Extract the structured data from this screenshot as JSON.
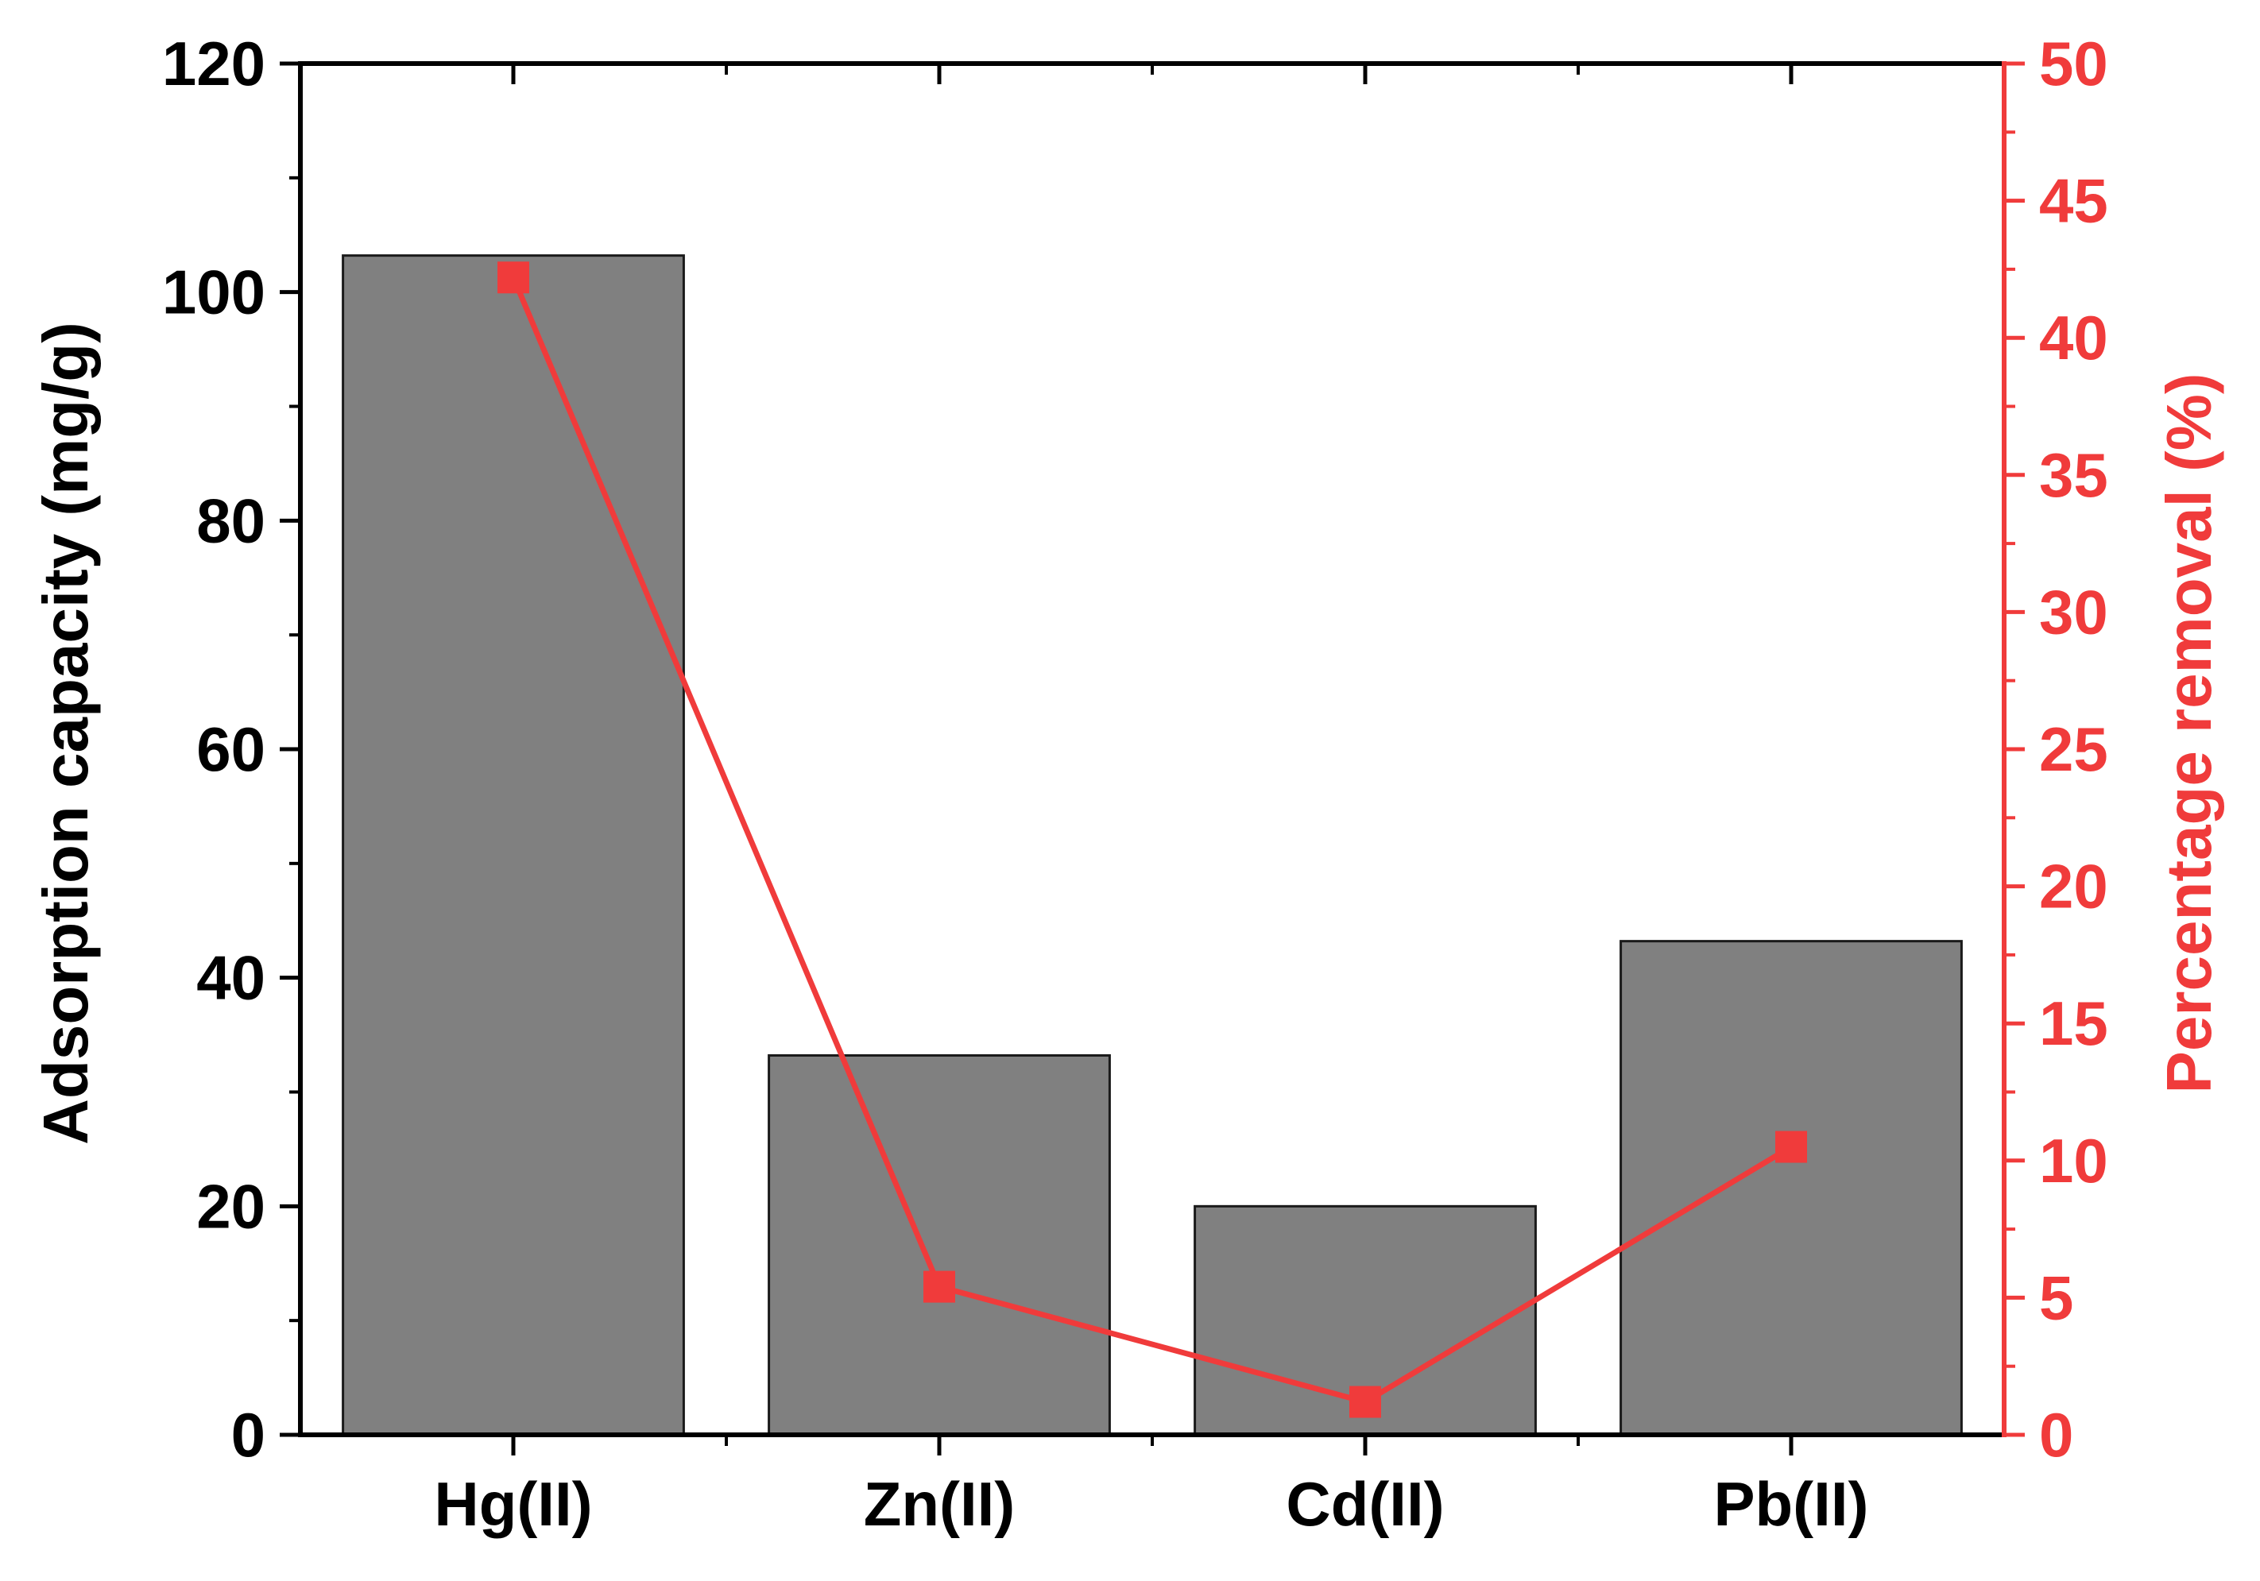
{
  "chart_data": {
    "type": "bar",
    "categories": [
      "Hg(II)",
      "Zn(II)",
      "Cd(II)",
      "Pb(II)"
    ],
    "series": [
      {
        "type": "bar",
        "axis": "left",
        "values": [
          103.2,
          33.2,
          20.0,
          43.2
        ],
        "color": "#808080"
      },
      {
        "type": "line",
        "axis": "right",
        "marker": "square",
        "values": [
          42.2,
          5.4,
          1.2,
          10.5
        ],
        "color": "#f03b3b"
      }
    ],
    "ylabel": "Adsorption capacity (mg/g)",
    "y2label": "Percentage removal (%)",
    "ylim": [
      0,
      120
    ],
    "y2lim": [
      0,
      50
    ],
    "yticks": [
      "0",
      "20",
      "40",
      "60",
      "80",
      "100",
      "120"
    ],
    "y2ticks": [
      "0",
      "5",
      "10",
      "15",
      "20",
      "25",
      "30",
      "35",
      "40",
      "45",
      "50"
    ],
    "grid": false,
    "legend": "none",
    "colors": {
      "left_axis": "#000000",
      "right_axis": "#f03b3b",
      "bar_fill": "#808080",
      "line": "#f03b3b"
    }
  }
}
